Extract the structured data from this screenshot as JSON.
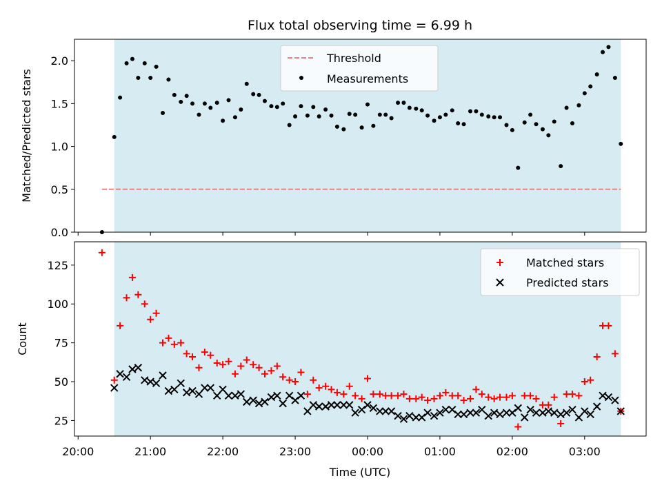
{
  "figure": {
    "title": "Flux total observing time = 6.99 h",
    "xlabel": "Time (UTC)",
    "x_tick_labels": [
      "20:00",
      "21:00",
      "22:00",
      "23:00",
      "00:00",
      "01:00",
      "02:00",
      "03:00"
    ]
  },
  "chart_data": [
    {
      "type": "scatter",
      "panel": "top",
      "ylabel": "Matched/Predicted stars",
      "ylim": [
        0,
        2.25
      ],
      "y_ticks": [
        0.0,
        0.5,
        1.0,
        1.5,
        2.0
      ],
      "y_tick_labels": [
        "0.0",
        "0.5",
        "1.0",
        "1.5",
        "2.0"
      ],
      "x_unit": "hours since 20:00 UTC",
      "xlim": [
        -0.05,
        7.85
      ],
      "observing_window": [
        0.5,
        7.5
      ],
      "legend_position": "upper center",
      "threshold": {
        "name": "Threshold",
        "value": 0.5,
        "x_range": [
          0.33,
          7.5
        ],
        "color": "#f08080"
      },
      "series": [
        {
          "name": "Measurements",
          "color": "#000000",
          "x": [
            0.33,
            0.5,
            0.58,
            0.67,
            0.75,
            0.83,
            0.92,
            1.0,
            1.08,
            1.17,
            1.25,
            1.33,
            1.42,
            1.5,
            1.58,
            1.67,
            1.75,
            1.83,
            1.92,
            2.0,
            2.08,
            2.17,
            2.25,
            2.33,
            2.42,
            2.5,
            2.58,
            2.67,
            2.75,
            2.83,
            2.92,
            3.0,
            3.08,
            3.17,
            3.25,
            3.33,
            3.42,
            3.5,
            3.58,
            3.67,
            3.75,
            3.83,
            3.92,
            4.0,
            4.08,
            4.17,
            4.25,
            4.33,
            4.42,
            4.5,
            4.58,
            4.67,
            4.75,
            4.83,
            4.92,
            5.0,
            5.08,
            5.17,
            5.25,
            5.33,
            5.42,
            5.5,
            5.58,
            5.67,
            5.75,
            5.83,
            5.92,
            6.0,
            6.08,
            6.17,
            6.25,
            6.33,
            6.42,
            6.5,
            6.58,
            6.67,
            6.75,
            6.83,
            6.92,
            7.0,
            7.08,
            7.17,
            7.25,
            7.33,
            7.42,
            7.5
          ],
          "y": [
            0.0,
            1.11,
            1.57,
            1.97,
            2.02,
            1.8,
            1.97,
            1.8,
            1.93,
            1.39,
            1.78,
            1.6,
            1.52,
            1.59,
            1.5,
            1.37,
            1.5,
            1.45,
            1.51,
            1.3,
            1.54,
            1.34,
            1.43,
            1.73,
            1.61,
            1.6,
            1.53,
            1.47,
            1.46,
            1.5,
            1.25,
            1.35,
            1.47,
            1.36,
            1.46,
            1.35,
            1.43,
            1.36,
            1.23,
            1.2,
            1.38,
            1.37,
            1.22,
            1.49,
            1.24,
            1.37,
            1.37,
            1.33,
            1.51,
            1.51,
            1.45,
            1.44,
            1.42,
            1.36,
            1.3,
            1.34,
            1.37,
            1.42,
            1.27,
            1.26,
            1.41,
            1.41,
            1.37,
            1.35,
            1.34,
            1.34,
            1.25,
            1.19,
            0.75,
            1.28,
            1.37,
            1.26,
            1.2,
            1.13,
            1.29,
            0.77,
            1.45,
            1.27,
            1.48,
            1.62,
            1.7,
            1.84,
            2.1,
            2.16,
            1.8,
            1.03
          ]
        }
      ]
    },
    {
      "type": "scatter",
      "panel": "bottom",
      "ylabel": "Count",
      "ylim": [
        15,
        140
      ],
      "y_ticks": [
        25,
        50,
        75,
        100,
        125
      ],
      "y_tick_labels": [
        "25",
        "50",
        "75",
        "100",
        "125"
      ],
      "x_unit": "hours since 20:00 UTC",
      "xlim": [
        -0.05,
        7.85
      ],
      "observing_window": [
        0.5,
        7.5
      ],
      "legend_position": "upper right",
      "series": [
        {
          "name": "Matched stars",
          "marker": "plus",
          "color": "#ff0000",
          "x": [
            0.33,
            0.5,
            0.58,
            0.67,
            0.75,
            0.83,
            0.92,
            1.0,
            1.08,
            1.17,
            1.25,
            1.33,
            1.42,
            1.5,
            1.58,
            1.67,
            1.75,
            1.83,
            1.92,
            2.0,
            2.08,
            2.17,
            2.25,
            2.33,
            2.42,
            2.5,
            2.58,
            2.67,
            2.75,
            2.83,
            2.92,
            3.0,
            3.08,
            3.17,
            3.25,
            3.33,
            3.42,
            3.5,
            3.58,
            3.67,
            3.75,
            3.83,
            3.92,
            4.0,
            4.08,
            4.17,
            4.25,
            4.33,
            4.42,
            4.5,
            4.58,
            4.67,
            4.75,
            4.83,
            4.92,
            5.0,
            5.08,
            5.17,
            5.25,
            5.33,
            5.42,
            5.5,
            5.58,
            5.67,
            5.75,
            5.83,
            5.92,
            6.0,
            6.08,
            6.17,
            6.25,
            6.33,
            6.42,
            6.5,
            6.58,
            6.67,
            6.75,
            6.83,
            6.92,
            7.0,
            7.08,
            7.17,
            7.25,
            7.33,
            7.42,
            7.5
          ],
          "y": [
            133,
            51,
            86,
            104,
            117,
            106,
            100,
            90,
            94,
            75,
            78,
            74,
            75,
            68,
            66,
            59,
            69,
            67,
            62,
            61,
            63,
            55,
            60,
            64,
            61,
            59,
            55,
            57,
            60,
            53,
            51,
            50,
            56,
            42,
            51,
            46,
            47,
            45,
            43,
            42,
            47,
            41,
            39,
            52,
            42,
            42,
            41,
            41,
            41,
            42,
            39,
            39,
            40,
            38,
            39,
            41,
            43,
            41,
            41,
            38,
            39,
            45,
            42,
            40,
            39,
            40,
            40,
            41,
            21,
            41,
            41,
            39,
            35,
            35,
            40,
            23,
            42,
            42,
            41,
            50,
            51,
            66,
            86,
            86,
            68,
            31
          ]
        },
        {
          "name": "Predicted stars",
          "marker": "x",
          "color": "#000000",
          "x": [
            0.5,
            0.58,
            0.67,
            0.75,
            0.83,
            0.92,
            1.0,
            1.08,
            1.17,
            1.25,
            1.33,
            1.42,
            1.5,
            1.58,
            1.67,
            1.75,
            1.83,
            1.92,
            2.0,
            2.08,
            2.17,
            2.25,
            2.33,
            2.42,
            2.5,
            2.58,
            2.67,
            2.75,
            2.83,
            2.92,
            3.0,
            3.08,
            3.17,
            3.25,
            3.33,
            3.42,
            3.5,
            3.58,
            3.67,
            3.75,
            3.83,
            3.92,
            4.0,
            4.08,
            4.17,
            4.25,
            4.33,
            4.42,
            4.5,
            4.58,
            4.67,
            4.75,
            4.83,
            4.92,
            5.0,
            5.08,
            5.17,
            5.25,
            5.33,
            5.42,
            5.5,
            5.58,
            5.67,
            5.75,
            5.83,
            5.92,
            6.0,
            6.08,
            6.17,
            6.25,
            6.33,
            6.42,
            6.5,
            6.58,
            6.67,
            6.75,
            6.83,
            6.92,
            7.0,
            7.08,
            7.17,
            7.25,
            7.33,
            7.42,
            7.5
          ],
          "y": [
            46,
            55,
            53,
            58,
            59,
            51,
            50,
            49,
            54,
            44,
            45,
            49,
            43,
            44,
            42,
            46,
            46,
            41,
            45,
            41,
            41,
            42,
            37,
            38,
            36,
            37,
            40,
            41,
            36,
            41,
            38,
            41,
            31,
            35,
            34,
            34,
            35,
            35,
            35,
            35,
            30,
            32,
            35,
            33,
            31,
            31,
            31,
            28,
            26,
            28,
            27,
            27,
            30,
            28,
            30,
            32,
            32,
            29,
            29,
            30,
            30,
            32,
            28,
            30,
            29,
            30,
            30,
            33,
            27,
            32,
            30,
            30,
            31,
            30,
            29,
            30,
            32,
            27,
            31,
            29,
            34,
            41,
            40,
            38,
            31
          ]
        }
      ]
    }
  ]
}
